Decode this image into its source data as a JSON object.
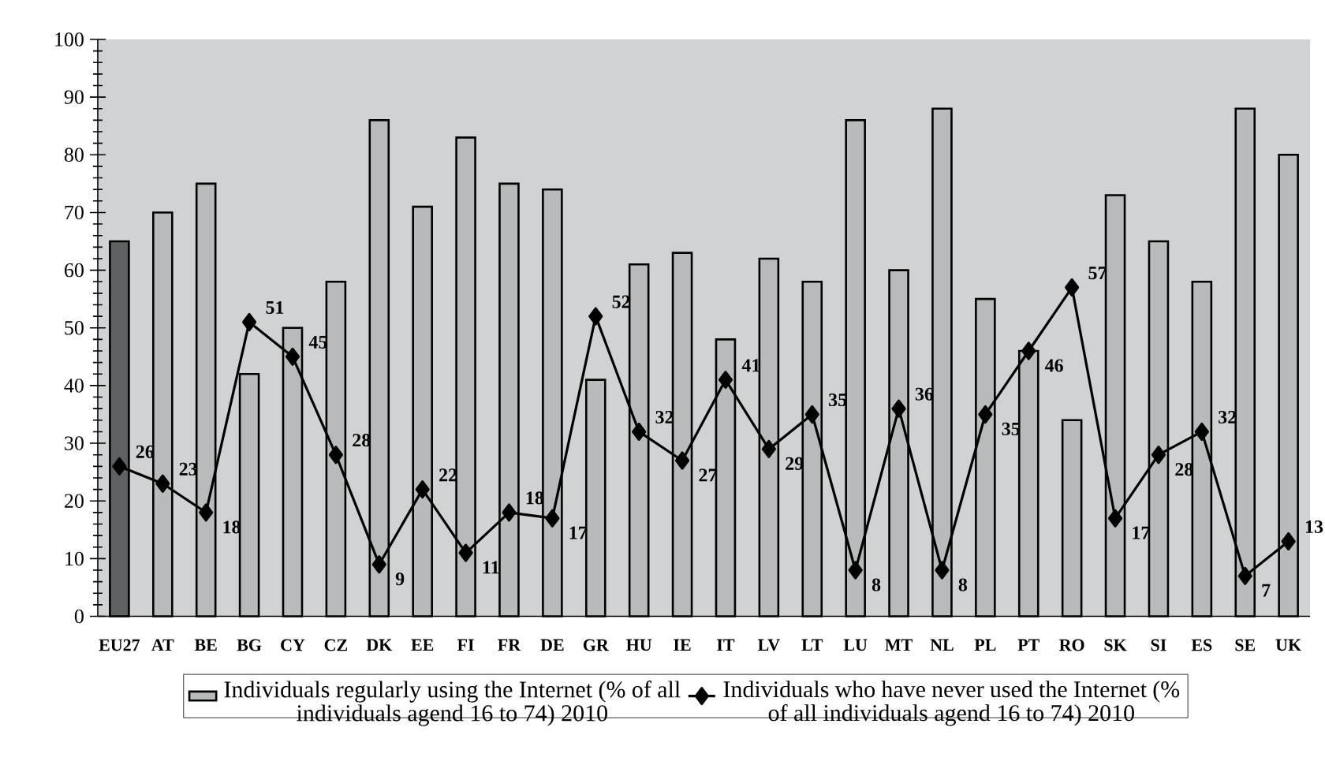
{
  "chart_data": {
    "type": "bar",
    "categories": [
      "EU27",
      "AT",
      "BE",
      "BG",
      "CY",
      "CZ",
      "DK",
      "EE",
      "FI",
      "FR",
      "DE",
      "GR",
      "HU",
      "IE",
      "IT",
      "LV",
      "LT",
      "LU",
      "MT",
      "NL",
      "PL",
      "PT",
      "RO",
      "SK",
      "SI",
      "ES",
      "SE",
      "UK"
    ],
    "series": [
      {
        "name": "Individuals regularly using the Internet (% of all individuals agend 16 to 74) 2010",
        "color": "#b8bbbb",
        "colors": [
          "#5f6262",
          "#b8bbbb",
          "#b8bbbb",
          "#b8bbbb",
          "#b8bbbb",
          "#b8bbbb",
          "#b8bbbb",
          "#b8bbbb",
          "#b8bbbb",
          "#b8bbbb",
          "#b8bbbb",
          "#b8bbbb",
          "#b8bbbb",
          "#b8bbbb",
          "#b8bbbb",
          "#b8bbbb",
          "#b8bbbb",
          "#b8bbbb",
          "#b8bbbb",
          "#b8bbbb",
          "#b8bbbb",
          "#b8bbbb",
          "#b8bbbb",
          "#b8bbbb",
          "#b8bbbb",
          "#b8bbbb",
          "#b8bbbb",
          "#b8bbbb"
        ],
        "values": [
          65,
          70,
          75,
          42,
          50,
          58,
          86,
          71,
          83,
          75,
          74,
          41,
          61,
          63,
          48,
          62,
          58,
          86,
          60,
          88,
          55,
          46,
          34,
          73,
          65,
          58,
          88,
          80
        ]
      },
      {
        "type": "line",
        "name": "Individuals who have never used the Internet (% of all individuals agend 16 to 74) 2010",
        "color": "#000000",
        "marker": "diamond",
        "line_style": "solid",
        "values": [
          26,
          23,
          18,
          51,
          45,
          28,
          9,
          22,
          11,
          18,
          17,
          52,
          32,
          27,
          41,
          29,
          35,
          8,
          36,
          8,
          35,
          46,
          57,
          17,
          28,
          32,
          7,
          13
        ],
        "value_labels": [
          "26",
          "23",
          "18",
          "51",
          "45",
          "28",
          "9",
          "22",
          "11",
          "18",
          "17",
          "52",
          "32",
          "27",
          "41",
          "29",
          "35",
          "8",
          "36",
          "8",
          "35",
          "46",
          "57",
          "17",
          "28",
          "32",
          "7",
          "13"
        ]
      }
    ],
    "ylim": [
      0,
      100
    ],
    "yticks": [
      0,
      10,
      20,
      30,
      40,
      50,
      60,
      70,
      80,
      90,
      100
    ],
    "grid": false,
    "legend": "bottom"
  }
}
